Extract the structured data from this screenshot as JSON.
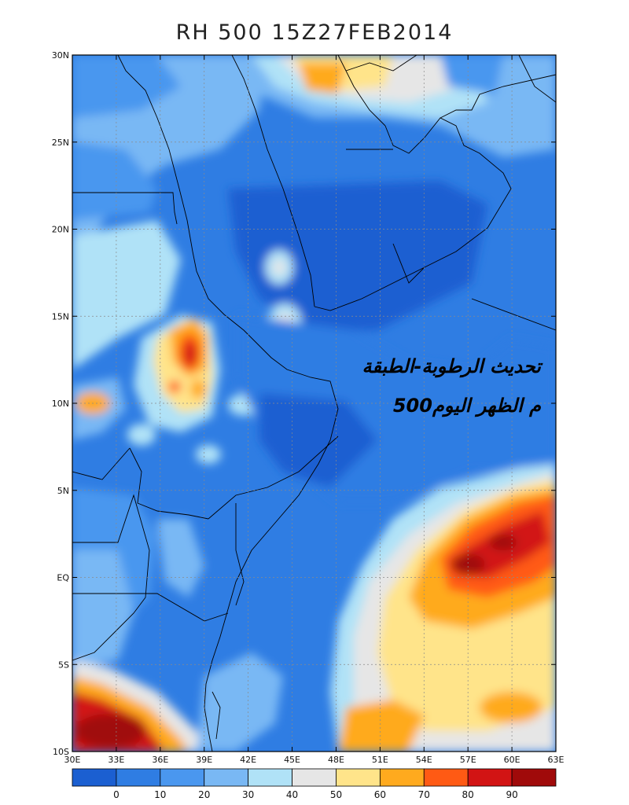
{
  "title": "RH 500 15Z27FEB2014",
  "annotation": {
    "line1": "تحديث الرطوبة-الطبقة",
    "line2": "500م الظهر اليوم"
  },
  "map": {
    "lon_range": [
      30,
      63
    ],
    "lat_range": [
      -10,
      30
    ],
    "lon_ticks": [
      {
        "value": 30,
        "label": "30E"
      },
      {
        "value": 33,
        "label": "33E"
      },
      {
        "value": 36,
        "label": "36E"
      },
      {
        "value": 39,
        "label": "39E"
      },
      {
        "value": 42,
        "label": "42E"
      },
      {
        "value": 45,
        "label": "45E"
      },
      {
        "value": 48,
        "label": "48E"
      },
      {
        "value": 51,
        "label": "51E"
      },
      {
        "value": 54,
        "label": "54E"
      },
      {
        "value": 57,
        "label": "57E"
      },
      {
        "value": 60,
        "label": "60E"
      },
      {
        "value": 63,
        "label": "63E"
      }
    ],
    "lat_ticks": [
      {
        "value": 30,
        "label": "30N"
      },
      {
        "value": 25,
        "label": "25N"
      },
      {
        "value": 20,
        "label": "20N"
      },
      {
        "value": 15,
        "label": "15N"
      },
      {
        "value": 10,
        "label": "10N"
      },
      {
        "value": 5,
        "label": "5N"
      },
      {
        "value": 0,
        "label": "EQ"
      },
      {
        "value": -5,
        "label": "5S"
      },
      {
        "value": -10,
        "label": "10S"
      }
    ],
    "grid": true
  },
  "colorbar": {
    "colors": [
      "#1b5fd1",
      "#2f7de3",
      "#4a97ef",
      "#79b8f4",
      "#b0e2f7",
      "#e6e6e6",
      "#ffe48a",
      "#ffaa1e",
      "#ff5a14",
      "#d21414",
      "#a00a0a"
    ],
    "labels": [
      "0",
      "10",
      "20",
      "30",
      "40",
      "50",
      "60",
      "70",
      "80",
      "90"
    ]
  }
}
